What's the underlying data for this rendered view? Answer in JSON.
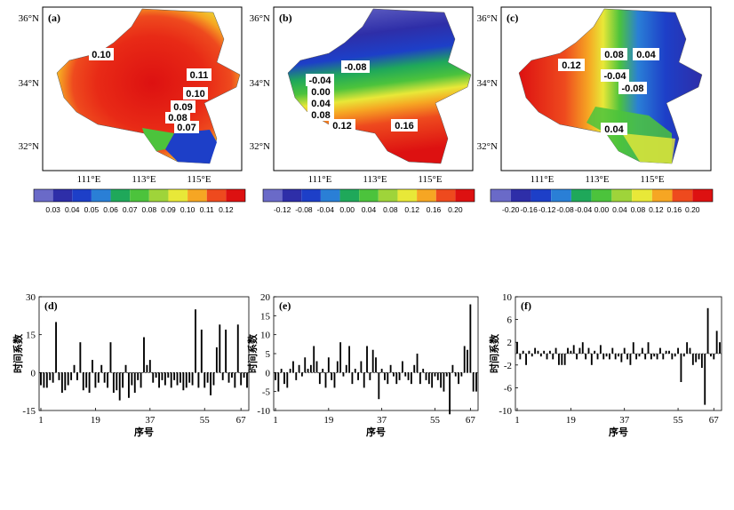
{
  "maps": [
    {
      "panel": "(a)",
      "lat_ticks": [
        "36°N",
        "34°N",
        "32°N"
      ],
      "lon_ticks": [
        "111°E",
        "113°E",
        "115°E"
      ],
      "contour_labels": [
        "0.10",
        "0.11",
        "0.10",
        "0.09",
        "0.08",
        "0.07"
      ],
      "colorbar_ticks": [
        "0.03",
        "0.04",
        "0.05",
        "0.06",
        "0.07",
        "0.08",
        "0.09",
        "0.10",
        "0.11",
        "0.12"
      ],
      "colorbar_colors": [
        "#6a6ac8",
        "#2e2ea8",
        "#1d3fc8",
        "#2a7fd6",
        "#1fa85a",
        "#4cc33c",
        "#9fd43a",
        "#e8e838",
        "#f6a623",
        "#ee4a1e",
        "#dd1111"
      ]
    },
    {
      "panel": "(b)",
      "lat_ticks": [
        "36°N",
        "34°N",
        "32°N"
      ],
      "lon_ticks": [
        "111°E",
        "113°E",
        "115°E"
      ],
      "contour_labels": [
        "-0.08",
        "-0.04",
        "0.00",
        "0.04",
        "0.08",
        "0.12",
        "0.16"
      ],
      "colorbar_ticks": [
        "-0.12",
        "-0.08",
        "-0.04",
        "0.00",
        "0.04",
        "0.08",
        "0.12",
        "0.16",
        "0.20"
      ],
      "colorbar_colors": [
        "#6a6ac8",
        "#2e2ea8",
        "#1d3fc8",
        "#2a7fd6",
        "#1fa85a",
        "#4cc33c",
        "#9fd43a",
        "#e8e838",
        "#f6a623",
        "#ee4a1e",
        "#dd1111"
      ]
    },
    {
      "panel": "(c)",
      "lat_ticks": [
        "36°N",
        "34°N",
        "32°N"
      ],
      "lon_ticks": [
        "111°E",
        "113°E",
        "115°E"
      ],
      "contour_labels": [
        "0.08",
        "0.04",
        "0.12",
        "-0.04",
        "-0.08",
        "0.04"
      ],
      "colorbar_ticks": [
        "-0.20",
        "-0.16",
        "-0.12",
        "-0.08",
        "-0.04",
        "0.00",
        "0.04",
        "0.08",
        "0.12",
        "0.16",
        "0.20"
      ],
      "colorbar_colors": [
        "#6a6ac8",
        "#2e2ea8",
        "#1d3fc8",
        "#2a7fd6",
        "#1fa85a",
        "#4cc33c",
        "#9fd43a",
        "#e8e838",
        "#f6a623",
        "#ee4a1e",
        "#dd1111"
      ]
    }
  ],
  "chart_data": [
    {
      "type": "bar",
      "panel": "(d)",
      "ylabel": "时间系数",
      "xlabel": "序号",
      "ylim": [
        -15,
        30
      ],
      "yticks": [
        -15,
        0,
        15,
        30
      ],
      "xticks": [
        1,
        19,
        37,
        55,
        67
      ],
      "x": [
        1,
        2,
        3,
        4,
        5,
        6,
        7,
        8,
        9,
        10,
        11,
        12,
        13,
        14,
        15,
        16,
        17,
        18,
        19,
        20,
        21,
        22,
        23,
        24,
        25,
        26,
        27,
        28,
        29,
        30,
        31,
        32,
        33,
        34,
        35,
        36,
        37,
        38,
        39,
        40,
        41,
        42,
        43,
        44,
        45,
        46,
        47,
        48,
        49,
        50,
        51,
        52,
        53,
        54,
        55,
        56,
        57,
        58,
        59,
        60,
        61,
        62,
        63,
        64,
        65,
        66,
        67,
        68,
        69
      ],
      "values": [
        -5,
        -6,
        -6,
        -3,
        -4,
        20,
        -3,
        -8,
        -7,
        -5,
        -3,
        3,
        -3,
        12,
        -7,
        -6,
        -8,
        5,
        -6,
        -4,
        3,
        -4,
        -6,
        12,
        -8,
        -7,
        -11,
        -6,
        3,
        -10,
        -5,
        -8,
        -3,
        -6,
        14,
        3,
        5,
        -4,
        -2,
        -6,
        -3,
        -5,
        -2,
        -6,
        -3,
        -5,
        -4,
        -7,
        -6,
        -4,
        -5,
        25,
        -6,
        17,
        -6,
        -4,
        -9,
        -5,
        10,
        19,
        -3,
        17,
        -4,
        -2,
        -6,
        19,
        -5,
        -2,
        -6
      ]
    },
    {
      "type": "bar",
      "panel": "(e)",
      "ylabel": "时间系数",
      "xlabel": "序号",
      "ylim": [
        -10,
        20
      ],
      "yticks": [
        -10,
        -5,
        0,
        5,
        10,
        15,
        20
      ],
      "xticks": [
        1,
        19,
        37,
        55,
        67
      ],
      "x": [
        1,
        2,
        3,
        4,
        5,
        6,
        7,
        8,
        9,
        10,
        11,
        12,
        13,
        14,
        15,
        16,
        17,
        18,
        19,
        20,
        21,
        22,
        23,
        24,
        25,
        26,
        27,
        28,
        29,
        30,
        31,
        32,
        33,
        34,
        35,
        36,
        37,
        38,
        39,
        40,
        41,
        42,
        43,
        44,
        45,
        46,
        47,
        48,
        49,
        50,
        51,
        52,
        53,
        54,
        55,
        56,
        57,
        58,
        59,
        60,
        61,
        62,
        63,
        64,
        65,
        66,
        67,
        68,
        69
      ],
      "values": [
        -2,
        -5,
        1,
        -3,
        -4,
        1,
        3,
        -2,
        2,
        -1,
        4,
        1,
        2,
        7,
        3,
        -3,
        1,
        -4,
        4,
        -2,
        -4,
        3,
        8,
        -1,
        2,
        7,
        -3,
        1,
        -2,
        3,
        -4,
        7,
        -2,
        6,
        4,
        -7,
        1,
        -2,
        -3,
        2,
        -1,
        -3,
        -2,
        3,
        -1,
        -2,
        -3,
        2,
        5,
        -3,
        1,
        -2,
        -3,
        -4,
        -1,
        -2,
        -4,
        -5,
        -1,
        -11,
        2,
        -1,
        -3,
        -1,
        7,
        6,
        18,
        -5,
        -5
      ]
    },
    {
      "type": "bar",
      "panel": "(f)",
      "ylabel": "时间系数",
      "xlabel": "序号",
      "ylim": [
        -10,
        10
      ],
      "yticks": [
        -10,
        -6,
        -2,
        2,
        6,
        10
      ],
      "xticks": [
        1,
        19,
        37,
        55,
        67
      ],
      "x": [
        1,
        2,
        3,
        4,
        5,
        6,
        7,
        8,
        9,
        10,
        11,
        12,
        13,
        14,
        15,
        16,
        17,
        18,
        19,
        20,
        21,
        22,
        23,
        24,
        25,
        26,
        27,
        28,
        29,
        30,
        31,
        32,
        33,
        34,
        35,
        36,
        37,
        38,
        39,
        40,
        41,
        42,
        43,
        44,
        45,
        46,
        47,
        48,
        49,
        50,
        51,
        52,
        53,
        54,
        55,
        56,
        57,
        58,
        59,
        60,
        61,
        62,
        63,
        64,
        65,
        66,
        67,
        68,
        69
      ],
      "values": [
        2,
        -1,
        0.5,
        -2,
        0.5,
        -0.5,
        1,
        0.5,
        -0.5,
        0.5,
        -1,
        0.5,
        -1,
        1,
        -2,
        -2,
        -2,
        1,
        0.5,
        1.5,
        -1,
        1,
        2,
        -1,
        1,
        -2,
        0.5,
        -1,
        1.5,
        -1,
        -0.5,
        -1,
        1,
        -1,
        -0.5,
        -1.5,
        1,
        -1,
        -2,
        2,
        -1,
        -0.5,
        1,
        -1,
        2,
        -1,
        -0.5,
        -1,
        1,
        -1,
        0.5,
        0.5,
        -1,
        -0.5,
        1,
        -5,
        -0.5,
        2,
        1,
        -2,
        -1.5,
        -1,
        -2.5,
        -9,
        8,
        -0.5,
        -1,
        4,
        2
      ]
    }
  ]
}
